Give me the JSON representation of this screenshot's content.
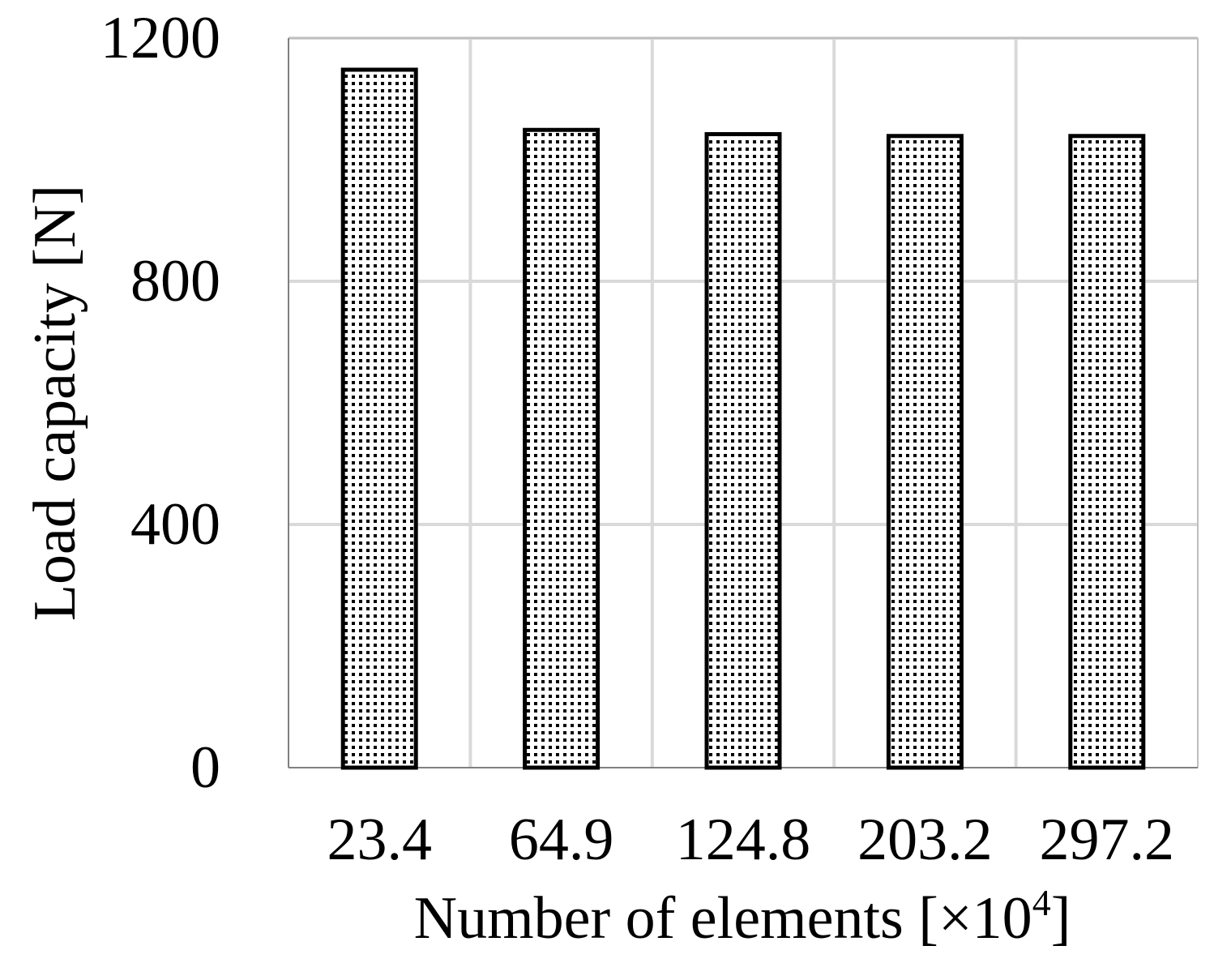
{
  "chart_data": {
    "type": "bar",
    "categories": [
      "23.4",
      "64.9",
      "124.8",
      "203.2",
      "297.2"
    ],
    "values": [
      1148,
      1049,
      1042,
      1039,
      1039
    ],
    "title": "",
    "xlabel": "Number of elements [×10",
    "xlabel_superscript": "4",
    "xlabel_suffix": "]",
    "ylabel": "Load capacity [N]",
    "ylim": [
      0,
      1200
    ],
    "yticks": [
      0,
      400,
      800,
      1200
    ],
    "grid": true,
    "legend": "none",
    "colors": {
      "bar_fill": "#ffffff",
      "bar_dots": "#000000",
      "bar_edge": "#000000",
      "grid": "#d9d9d9",
      "frame": "#bfbfbf"
    }
  }
}
